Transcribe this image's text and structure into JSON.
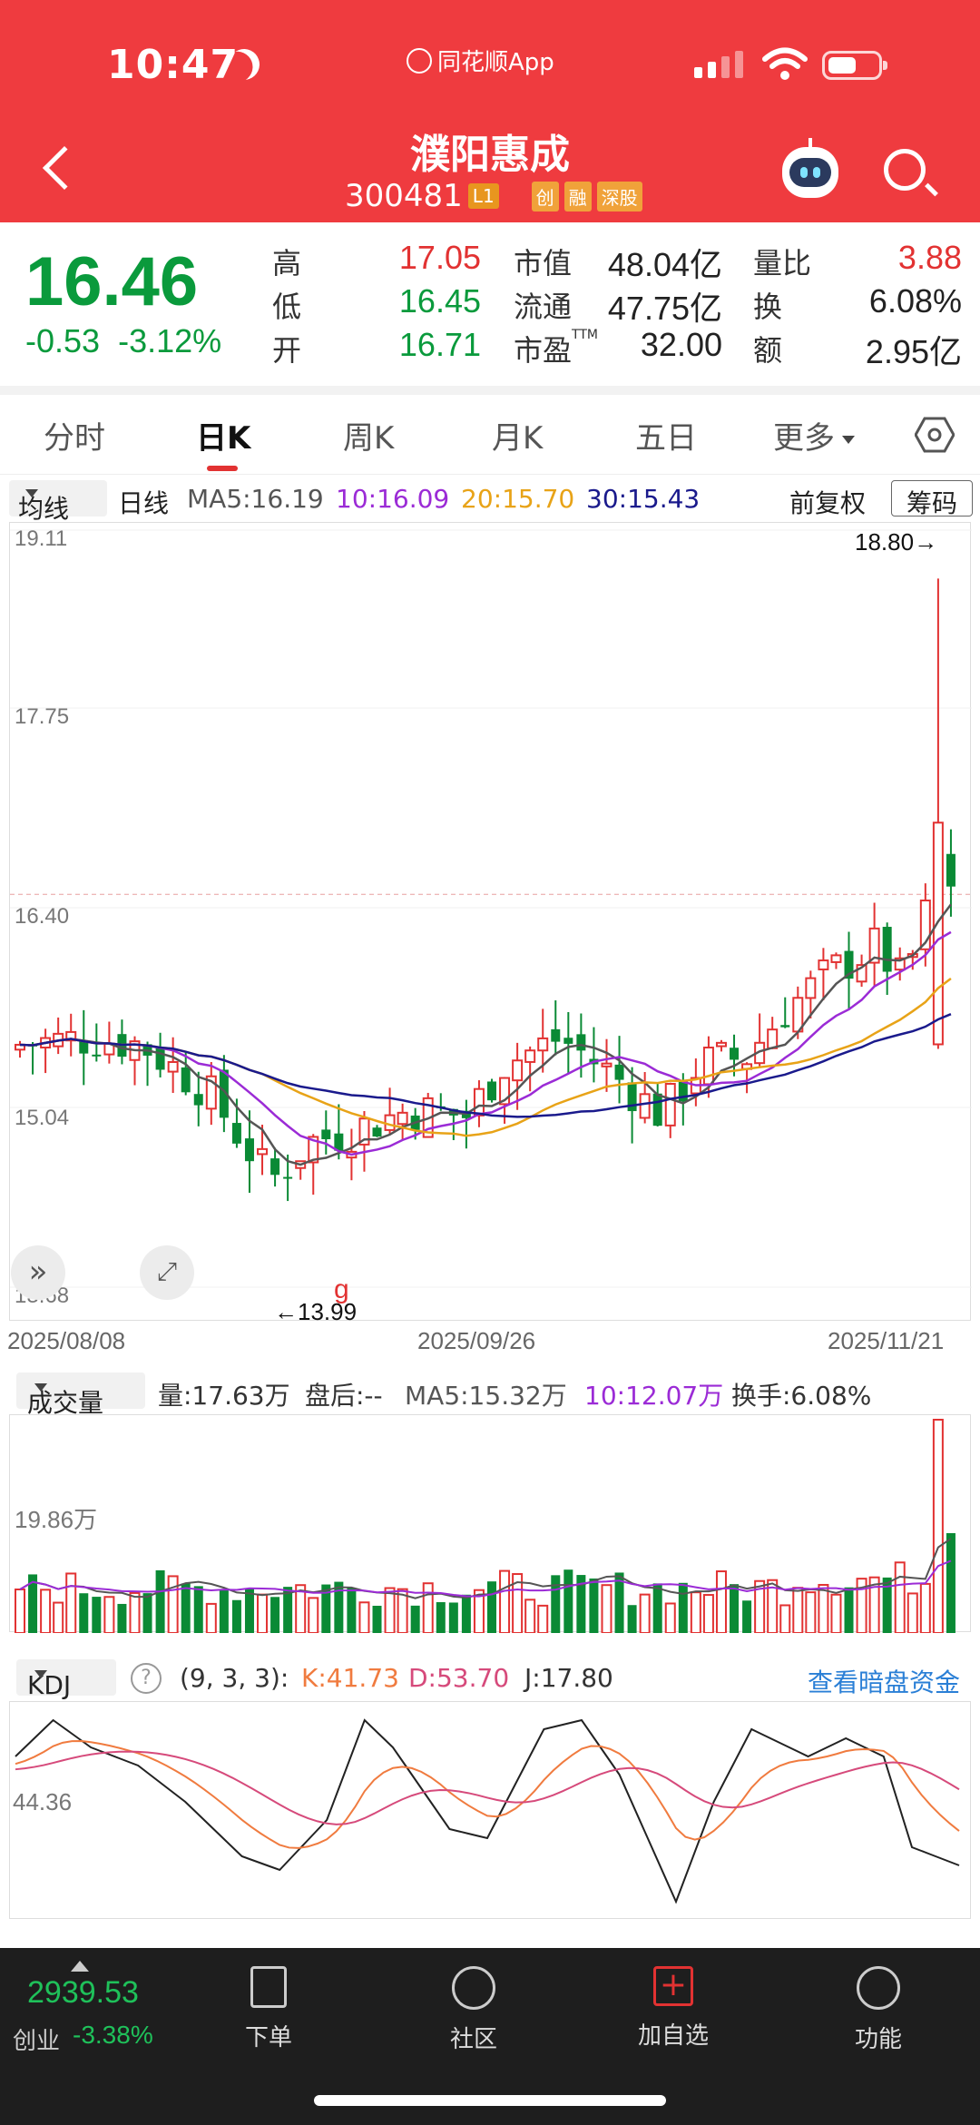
{
  "status_bar": {
    "time": "10:47",
    "app_name": "同花顺App"
  },
  "header": {
    "stock_name": "濮阳惠成",
    "stock_code": "300481",
    "tags": [
      "L1",
      "创",
      "融",
      "深股"
    ]
  },
  "quote": {
    "price": "16.46",
    "change": "-0.53",
    "change_pct": "-3.12%",
    "high_label": "高",
    "high": "17.05",
    "low_label": "低",
    "low": "16.45",
    "open_label": "开",
    "open": "16.71",
    "mktcap_label": "市值",
    "mktcap": "48.04亿",
    "float_label": "流通",
    "float": "47.75亿",
    "pe_label": "市盈",
    "pe_sup": "TTM",
    "pe": "32.00",
    "vol_ratio_label": "量比",
    "vol_ratio": "3.88",
    "turnover_label": "换",
    "turnover": "6.08%",
    "amount_label": "额",
    "amount": "2.95亿"
  },
  "tabs": [
    "分时",
    "日K",
    "周K",
    "月K",
    "五日",
    "更多"
  ],
  "active_tab": "日K",
  "ma_row": {
    "select": "均线",
    "period": "日线",
    "ma5": "MA5:16.19",
    "ma10": "10:16.09",
    "ma20": "20:15.70",
    "ma30": "30:15.43",
    "adjust": "前复权",
    "chouma": "筹码"
  },
  "kline": {
    "y_labels": [
      "19.11",
      "17.75",
      "16.40",
      "15.04",
      "13.68"
    ],
    "high_mark": "18.80→",
    "low_mark": "←13.99",
    "event_mark": "g",
    "dates": [
      "2025/08/08",
      "2025/09/26",
      "2025/11/21"
    ]
  },
  "volume": {
    "select": "成交量",
    "vol": "量:17.63万",
    "after": "盘后:--",
    "ma5": "MA5:15.32万",
    "ma10": "10:12.07万",
    "turnover": "换手:6.08%",
    "y_label": "19.86万"
  },
  "kdj": {
    "select": "KDJ",
    "params": "(9, 3, 3):",
    "k": "K:41.73",
    "d": "D:53.70",
    "j": "J:17.80",
    "link": "查看暗盘资金",
    "y_label": "44.36"
  },
  "bottom_nav": {
    "index_value": "2939.53",
    "index_name": "创业",
    "index_change": "-3.38%",
    "items": [
      "下单",
      "社区",
      "加自选",
      "功能"
    ]
  },
  "colors": {
    "up": "#e23232",
    "down": "#0a9a3c",
    "header": "#ef3b3f"
  }
}
